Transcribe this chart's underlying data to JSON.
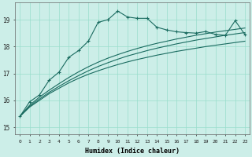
{
  "xlabel": "Humidex (Indice chaleur)",
  "bg_color": "#cceee8",
  "grid_color": "#99ddcc",
  "line_color": "#1a6b60",
  "xlim": [
    -0.5,
    23.5
  ],
  "ylim": [
    14.75,
    19.65
  ],
  "xticks": [
    0,
    1,
    2,
    3,
    4,
    5,
    6,
    7,
    8,
    9,
    10,
    11,
    12,
    13,
    14,
    15,
    16,
    17,
    18,
    19,
    20,
    21,
    22,
    23
  ],
  "yticks": [
    15,
    16,
    17,
    18,
    19
  ],
  "series_linear1": {
    "x": [
      0,
      1,
      2,
      3,
      4,
      5,
      6,
      7,
      8,
      9,
      10,
      11,
      12,
      13,
      14,
      15,
      16,
      17,
      18,
      19,
      20,
      21,
      22,
      23
    ],
    "y": [
      15.4,
      15.75,
      16.0,
      16.25,
      16.45,
      16.65,
      16.82,
      16.97,
      17.1,
      17.22,
      17.33,
      17.43,
      17.52,
      17.6,
      17.68,
      17.75,
      17.82,
      17.88,
      17.94,
      18.0,
      18.05,
      18.1,
      18.15,
      18.2
    ]
  },
  "series_linear2": {
    "x": [
      0,
      1,
      2,
      3,
      4,
      5,
      6,
      7,
      8,
      9,
      10,
      11,
      12,
      13,
      14,
      15,
      16,
      17,
      18,
      19,
      20,
      21,
      22,
      23
    ],
    "y": [
      15.4,
      15.78,
      16.05,
      16.3,
      16.52,
      16.73,
      16.92,
      17.1,
      17.26,
      17.4,
      17.53,
      17.65,
      17.75,
      17.85,
      17.94,
      18.02,
      18.1,
      18.17,
      18.24,
      18.3,
      18.36,
      18.42,
      18.47,
      18.52
    ]
  },
  "series_linear3": {
    "x": [
      0,
      1,
      2,
      3,
      4,
      5,
      6,
      7,
      8,
      9,
      10,
      11,
      12,
      13,
      14,
      15,
      16,
      17,
      18,
      19,
      20,
      21,
      22,
      23
    ],
    "y": [
      15.4,
      15.82,
      16.12,
      16.38,
      16.62,
      16.85,
      17.06,
      17.25,
      17.42,
      17.57,
      17.7,
      17.82,
      17.93,
      18.03,
      18.12,
      18.2,
      18.28,
      18.35,
      18.42,
      18.48,
      18.54,
      18.59,
      18.64,
      18.69
    ]
  },
  "series_main": {
    "x": [
      0,
      1,
      2,
      3,
      4,
      5,
      6,
      7,
      8,
      9,
      10,
      11,
      12,
      13,
      14,
      15,
      16,
      17,
      18,
      19,
      20,
      21,
      22,
      23
    ],
    "y": [
      15.4,
      15.95,
      16.2,
      16.75,
      17.05,
      17.6,
      17.85,
      18.2,
      18.9,
      19.0,
      19.32,
      19.1,
      19.05,
      19.05,
      18.72,
      18.62,
      18.55,
      18.52,
      18.5,
      18.56,
      18.45,
      18.42,
      18.96,
      18.45
    ]
  }
}
